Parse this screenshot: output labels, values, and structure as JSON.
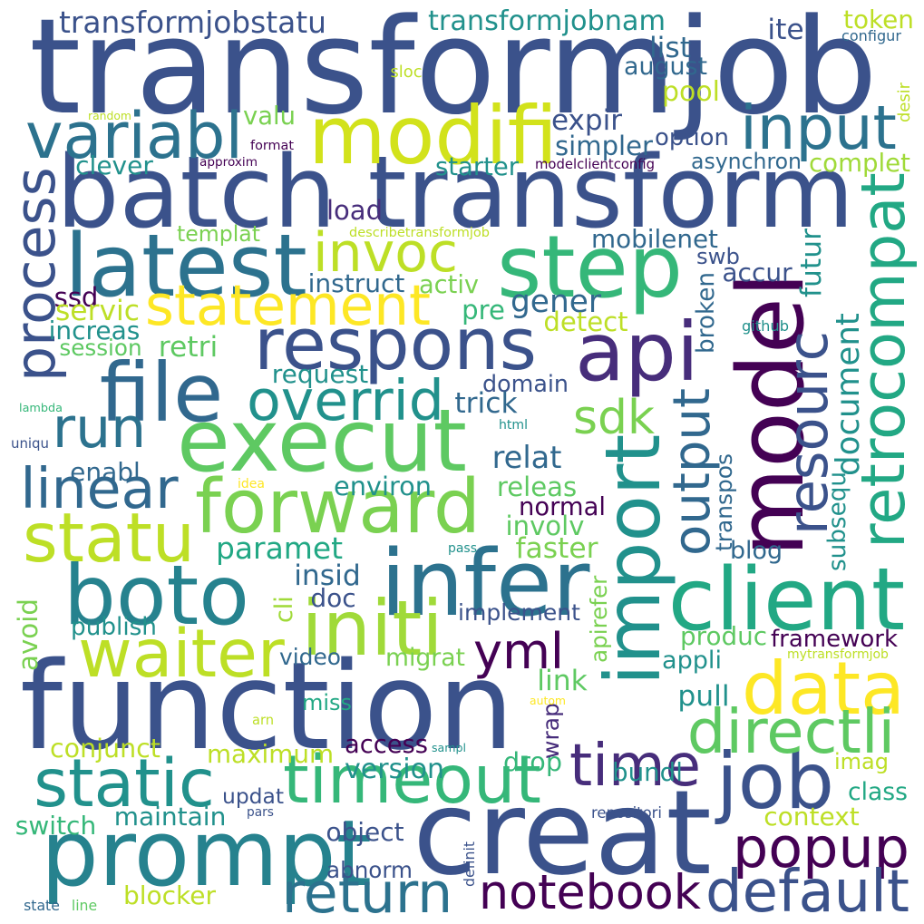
{
  "palette": [
    "#440154",
    "#3b528b",
    "#21918c",
    "#5ec962",
    "#fde725"
  ],
  "words": [
    {
      "text": "transformjob",
      "color": "#3b528b"
    },
    {
      "text": "batch transform",
      "color": "#3b528b"
    },
    {
      "text": "function",
      "color": "#3b528b"
    },
    {
      "text": "execut",
      "color": "#5ec962"
    },
    {
      "text": "creat",
      "color": "#3b528b"
    },
    {
      "text": "model",
      "color": "#440154"
    },
    {
      "text": "modifi",
      "color": "#d2e21b"
    },
    {
      "text": "step",
      "color": "#35b779"
    },
    {
      "text": "import",
      "color": "#21918c"
    },
    {
      "text": "prompt",
      "color": "#26828e"
    },
    {
      "text": "boto",
      "color": "#26828e"
    },
    {
      "text": "infer",
      "color": "#2c728e"
    },
    {
      "text": "respons",
      "color": "#3b528b"
    },
    {
      "text": "file",
      "color": "#31688e"
    },
    {
      "text": "latest",
      "color": "#2c728e"
    },
    {
      "text": "forward",
      "color": "#7ad151"
    },
    {
      "text": "api",
      "color": "#472d7b"
    },
    {
      "text": "client",
      "color": "#22a884"
    },
    {
      "text": "data",
      "color": "#fde725"
    },
    {
      "text": "timeout",
      "color": "#35b779"
    },
    {
      "text": "retrocompat",
      "color": "#22a884"
    },
    {
      "text": "job",
      "color": "#3b528b"
    },
    {
      "text": "statu",
      "color": "#bddf26"
    },
    {
      "text": "waiter",
      "color": "#bddf26"
    },
    {
      "text": "initi",
      "color": "#a0da39"
    },
    {
      "text": "input",
      "color": "#2c728e"
    },
    {
      "text": "variabl",
      "color": "#2c728e"
    },
    {
      "text": "statement",
      "color": "#fde725"
    },
    {
      "text": "invoc",
      "color": "#bddf26"
    },
    {
      "text": "static",
      "color": "#21918c"
    },
    {
      "text": "process",
      "color": "#3b528b"
    },
    {
      "text": "resourc",
      "color": "#3b528b"
    },
    {
      "text": "output",
      "color": "#31688e"
    },
    {
      "text": "time",
      "color": "#472d7b"
    },
    {
      "text": "popup",
      "color": "#440154"
    },
    {
      "text": "notebook",
      "color": "#440154"
    },
    {
      "text": "default",
      "color": "#3b528b"
    },
    {
      "text": "return",
      "color": "#2c728e"
    },
    {
      "text": "directli",
      "color": "#5ec962"
    },
    {
      "text": "document",
      "color": "#21918c"
    },
    {
      "text": "sdk",
      "color": "#7ad151"
    },
    {
      "text": "overrid",
      "color": "#21918c"
    },
    {
      "text": "run",
      "color": "#2c728e"
    },
    {
      "text": "linear",
      "color": "#31688e"
    },
    {
      "text": "yml",
      "color": "#440154"
    },
    {
      "text": "transformjobstatu",
      "color": "#3b528b"
    },
    {
      "text": "transformjobnam",
      "color": "#21918c"
    },
    {
      "text": "maximum",
      "color": "#bddf26"
    },
    {
      "text": "paramet",
      "color": "#22a884"
    },
    {
      "text": "token",
      "color": "#bddf26"
    },
    {
      "text": "iter",
      "color": "#3b528b"
    },
    {
      "text": "list",
      "color": "#31688e"
    },
    {
      "text": "august",
      "color": "#31688e"
    },
    {
      "text": "pool",
      "color": "#bddf26"
    },
    {
      "text": "expir",
      "color": "#3b528b"
    },
    {
      "text": "simpler",
      "color": "#31688e"
    },
    {
      "text": "option",
      "color": "#3b528b"
    },
    {
      "text": "asynchron",
      "color": "#31688e"
    },
    {
      "text": "complet",
      "color": "#a0da39"
    },
    {
      "text": "starter",
      "color": "#21918c"
    },
    {
      "text": "clever",
      "color": "#21918c"
    },
    {
      "text": "valu",
      "color": "#7ad151"
    },
    {
      "text": "load",
      "color": "#472d7b"
    },
    {
      "text": "templat",
      "color": "#7ad151"
    },
    {
      "text": "mobilenet",
      "color": "#31688e"
    },
    {
      "text": "swb",
      "color": "#3b528b"
    },
    {
      "text": "accur",
      "color": "#3b528b"
    },
    {
      "text": "gener",
      "color": "#31688e"
    },
    {
      "text": "ssd",
      "color": "#440154"
    },
    {
      "text": "instruct",
      "color": "#31688e"
    },
    {
      "text": "activ",
      "color": "#7ad151"
    },
    {
      "text": "servic",
      "color": "#bddf26"
    },
    {
      "text": "pre",
      "color": "#35b779"
    },
    {
      "text": "increas",
      "color": "#21918c"
    },
    {
      "text": "detect",
      "color": "#bddf26"
    },
    {
      "text": "session",
      "color": "#5ec962"
    },
    {
      "text": "retri",
      "color": "#5ec962"
    },
    {
      "text": "request",
      "color": "#21918c"
    },
    {
      "text": "domain",
      "color": "#3b528b"
    },
    {
      "text": "trick",
      "color": "#31688e"
    },
    {
      "text": "broken",
      "color": "#31688e"
    },
    {
      "text": "futur",
      "color": "#21918c"
    },
    {
      "text": "github",
      "color": "#21918c"
    },
    {
      "text": "relat",
      "color": "#31688e"
    },
    {
      "text": "enabl",
      "color": "#31688e"
    },
    {
      "text": "environ",
      "color": "#21918c"
    },
    {
      "text": "releas",
      "color": "#5ec962"
    },
    {
      "text": "normal",
      "color": "#440154"
    },
    {
      "text": "involv",
      "color": "#5ec962"
    },
    {
      "text": "faster",
      "color": "#7ad151"
    },
    {
      "text": "transpos",
      "color": "#31688e"
    },
    {
      "text": "subsequ",
      "color": "#21918c"
    },
    {
      "text": "blog",
      "color": "#31688e"
    },
    {
      "text": "insid",
      "color": "#31688e"
    },
    {
      "text": "doc",
      "color": "#3b528b"
    },
    {
      "text": "implement",
      "color": "#3b528b"
    },
    {
      "text": "framework",
      "color": "#440154"
    },
    {
      "text": "produc",
      "color": "#5ec962"
    },
    {
      "text": "appli",
      "color": "#21918c"
    },
    {
      "text": "publish",
      "color": "#21918c"
    },
    {
      "text": "video",
      "color": "#31688e"
    },
    {
      "text": "migrat",
      "color": "#7ad151"
    },
    {
      "text": "link",
      "color": "#5ec962"
    },
    {
      "text": "pull",
      "color": "#21918c"
    },
    {
      "text": "miss",
      "color": "#22a884"
    },
    {
      "text": "conjunct",
      "color": "#bddf26"
    },
    {
      "text": "access",
      "color": "#440154"
    },
    {
      "text": "drop",
      "color": "#35b779"
    },
    {
      "text": "version",
      "color": "#21918c"
    },
    {
      "text": "imag",
      "color": "#bddf26"
    },
    {
      "text": "bundl",
      "color": "#21918c"
    },
    {
      "text": "updat",
      "color": "#3b528b"
    },
    {
      "text": "maintain",
      "color": "#21918c"
    },
    {
      "text": "switch",
      "color": "#35b779"
    },
    {
      "text": "object",
      "color": "#3b528b"
    },
    {
      "text": "class",
      "color": "#22a884"
    },
    {
      "text": "context",
      "color": "#bddf26"
    },
    {
      "text": "abnorm",
      "color": "#3b528b"
    },
    {
      "text": "blocker",
      "color": "#bddf26"
    },
    {
      "text": "avoid",
      "color": "#7ad151"
    },
    {
      "text": "cli",
      "color": "#a0da39"
    },
    {
      "text": "wrap",
      "color": "#472d7b"
    },
    {
      "text": "apirefer",
      "color": "#7ad151"
    },
    {
      "text": "configur",
      "color": "#31688e"
    },
    {
      "text": "sloc",
      "color": "#bddf26"
    },
    {
      "text": "desir",
      "color": "#bddf26"
    },
    {
      "text": "random",
      "color": "#bddf26"
    },
    {
      "text": "format",
      "color": "#440154"
    },
    {
      "text": "approxim",
      "color": "#440154"
    },
    {
      "text": "modelclientconfig",
      "color": "#440154"
    },
    {
      "text": "describetransformjob",
      "color": "#bddf26"
    },
    {
      "text": "lambda",
      "color": "#35b779"
    },
    {
      "text": "uniqu",
      "color": "#3b528b"
    },
    {
      "text": "html",
      "color": "#21918c"
    },
    {
      "text": "idea",
      "color": "#fde725"
    },
    {
      "text": "pass",
      "color": "#21918c"
    },
    {
      "text": "mytransformjob",
      "color": "#bddf26"
    },
    {
      "text": "autom",
      "color": "#fde725"
    },
    {
      "text": "arn",
      "color": "#bddf26"
    },
    {
      "text": "sampl",
      "color": "#21918c"
    },
    {
      "text": "pars",
      "color": "#3b528b"
    },
    {
      "text": "repositori",
      "color": "#3b528b"
    },
    {
      "text": "definit",
      "color": "#3b528b"
    },
    {
      "text": "state",
      "color": "#31688e"
    },
    {
      "text": "line",
      "color": "#5ec962"
    }
  ]
}
